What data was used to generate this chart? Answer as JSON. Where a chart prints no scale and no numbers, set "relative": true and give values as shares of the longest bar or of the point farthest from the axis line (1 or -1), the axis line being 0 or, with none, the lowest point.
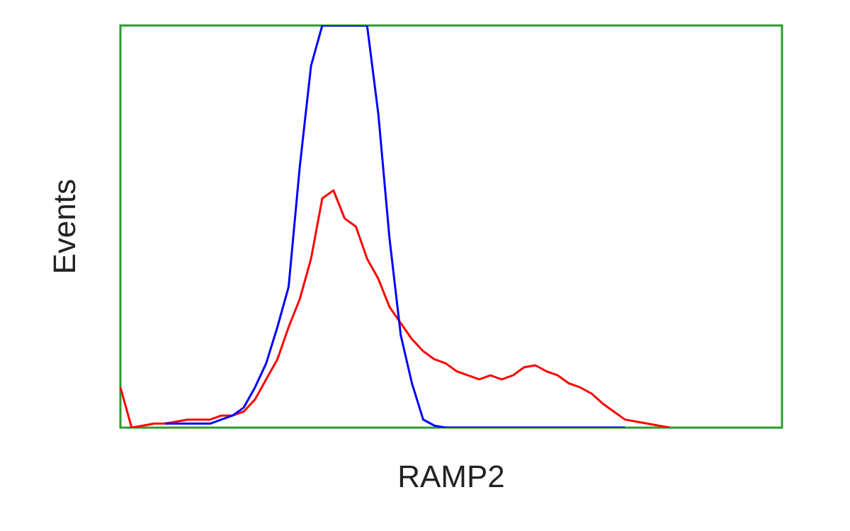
{
  "chart_data": {
    "type": "line",
    "relative": true,
    "xlabel": "RAMP2",
    "ylabel": "Events",
    "legend": false,
    "marker": "none",
    "line_style": "solid",
    "categories": [
      null,
      null,
      null,
      null,
      null,
      null,
      null,
      null,
      null,
      null,
      null,
      null,
      null,
      null,
      null,
      null,
      null,
      null,
      null,
      null,
      null,
      null,
      null,
      null,
      null,
      null,
      null,
      null,
      null,
      null,
      null,
      null,
      null,
      null,
      null,
      null,
      null,
      null,
      null,
      null,
      null,
      null,
      null,
      null,
      null,
      null,
      null,
      null,
      null,
      null,
      null,
      null,
      null,
      null,
      null,
      null,
      null,
      null,
      null,
      null
    ],
    "series": [
      {
        "color": "#0000ff",
        "values": [
          null,
          null,
          null,
          null,
          0.01,
          0.01,
          0.01,
          0.01,
          0.01,
          0.02,
          0.03,
          0.05,
          0.1,
          0.16,
          0.25,
          0.35,
          0.65,
          0.9,
          1,
          1,
          1,
          1,
          1,
          0.78,
          0.47,
          0.23,
          0.11,
          0.02,
          0.005,
          0,
          0,
          0,
          0,
          0,
          0,
          0,
          0,
          0,
          0,
          0,
          0,
          0,
          0,
          0,
          0,
          0,
          null,
          null,
          null,
          null,
          null,
          null,
          null,
          null,
          null,
          null,
          null,
          null,
          null,
          null
        ]
      },
      {
        "color": "#ff0000",
        "values": [
          0.1,
          0,
          0.005,
          0.01,
          0.01,
          0.015,
          0.02,
          0.02,
          0.02,
          0.03,
          0.03,
          0.04,
          0.07,
          0.12,
          0.17,
          0.25,
          0.32,
          0.42,
          0.57,
          0.59,
          0.52,
          0.5,
          0.42,
          0.37,
          0.3,
          0.26,
          0.22,
          0.19,
          0.17,
          0.16,
          0.14,
          0.13,
          0.12,
          0.13,
          0.12,
          0.13,
          0.15,
          0.155,
          0.14,
          0.13,
          0.11,
          0.1,
          0.085,
          0.06,
          0.04,
          0.02,
          0.015,
          0.01,
          0.005,
          0,
          null,
          null,
          null,
          null,
          null,
          null,
          null,
          null,
          null,
          null
        ]
      }
    ]
  }
}
